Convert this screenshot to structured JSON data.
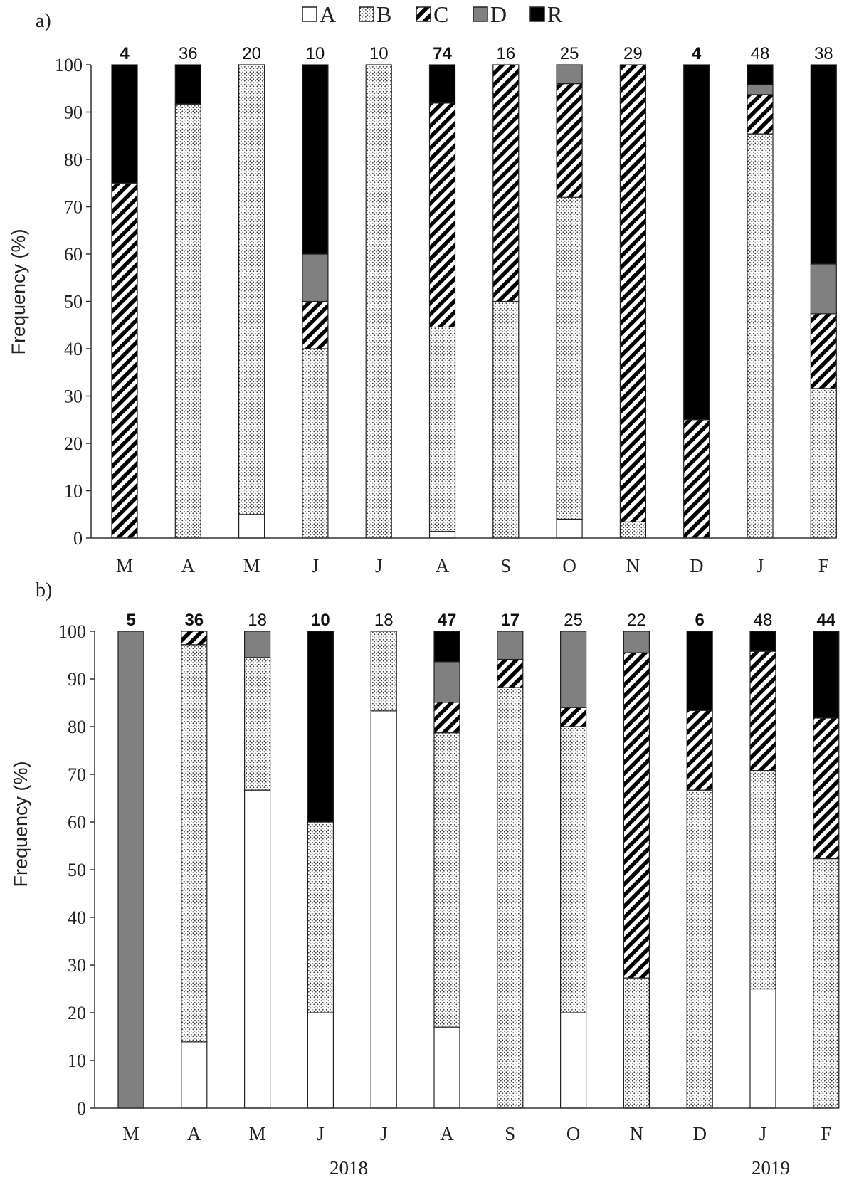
{
  "legend": [
    {
      "key": "A",
      "label": "A"
    },
    {
      "key": "B",
      "label": "B"
    },
    {
      "key": "C",
      "label": "C"
    },
    {
      "key": "D",
      "label": "D"
    },
    {
      "key": "R",
      "label": "R"
    }
  ],
  "colors": {
    "A": "#ffffff",
    "D": "#808080",
    "R": "#000000",
    "axis": "#333333"
  },
  "years": [
    "2018",
    "2019"
  ],
  "chart_data": [
    {
      "type": "bar",
      "stacked": true,
      "panel_label": "a)",
      "ylabel": "Frequency (%)",
      "ylim": [
        0,
        100
      ],
      "yticks": [
        0,
        10,
        20,
        30,
        40,
        50,
        60,
        70,
        80,
        90,
        100
      ],
      "categories": [
        "M",
        "A",
        "M",
        "J",
        "J",
        "A",
        "S",
        "O",
        "N",
        "D",
        "J",
        "F"
      ],
      "counts": [
        "4",
        "36",
        "20",
        "10",
        "10",
        "74",
        "16",
        "25",
        "29",
        "4",
        "48",
        "38"
      ],
      "counts_bold": [
        true,
        false,
        false,
        false,
        false,
        true,
        false,
        false,
        false,
        true,
        false,
        false
      ],
      "series": [
        {
          "name": "A",
          "values": [
            0,
            0,
            5,
            0,
            0,
            1.4,
            0,
            4,
            0,
            0,
            0,
            0
          ]
        },
        {
          "name": "B",
          "values": [
            0,
            91.7,
            95,
            40,
            100,
            43.2,
            50,
            68,
            3.4,
            0,
            85.4,
            31.6
          ]
        },
        {
          "name": "C",
          "values": [
            75,
            0,
            0,
            10,
            0,
            47.3,
            50,
            24,
            96.6,
            25,
            8.3,
            15.8
          ]
        },
        {
          "name": "D",
          "values": [
            0,
            0,
            0,
            10,
            0,
            0,
            0,
            4,
            0,
            0,
            2.1,
            10.5
          ]
        },
        {
          "name": "R",
          "values": [
            25,
            8.3,
            0,
            40,
            0,
            8.1,
            0,
            0,
            0,
            75,
            4.2,
            42.1
          ]
        }
      ]
    },
    {
      "type": "bar",
      "stacked": true,
      "panel_label": "b)",
      "ylabel": "Frequency (%)",
      "ylim": [
        0,
        100
      ],
      "yticks": [
        0,
        10,
        20,
        30,
        40,
        50,
        60,
        70,
        80,
        90,
        100
      ],
      "categories": [
        "M",
        "A",
        "M",
        "J",
        "J",
        "A",
        "S",
        "O",
        "N",
        "D",
        "J",
        "F"
      ],
      "counts": [
        "5",
        "36",
        "18",
        "10",
        "18",
        "47",
        "17",
        "25",
        "22",
        "6",
        "48",
        "44"
      ],
      "counts_bold": [
        true,
        true,
        false,
        true,
        false,
        true,
        true,
        false,
        false,
        true,
        false,
        true
      ],
      "series": [
        {
          "name": "A",
          "values": [
            0,
            13.9,
            66.7,
            20,
            83.3,
            17,
            0,
            20,
            0,
            0,
            25,
            0
          ]
        },
        {
          "name": "B",
          "values": [
            0,
            83.3,
            27.8,
            40,
            16.7,
            61.7,
            88.2,
            60,
            27.3,
            66.7,
            45.8,
            52.3
          ]
        },
        {
          "name": "C",
          "values": [
            0,
            2.8,
            0,
            0,
            0,
            6.4,
            5.9,
            4,
            68.2,
            16.7,
            25,
            29.5
          ]
        },
        {
          "name": "D",
          "values": [
            100,
            0,
            5.5,
            0,
            0,
            8.5,
            5.9,
            16,
            4.5,
            0,
            0,
            0
          ]
        },
        {
          "name": "R",
          "values": [
            0,
            0,
            0,
            40,
            0,
            6.4,
            0,
            0,
            0,
            16.6,
            4.2,
            18.2
          ]
        }
      ]
    }
  ]
}
